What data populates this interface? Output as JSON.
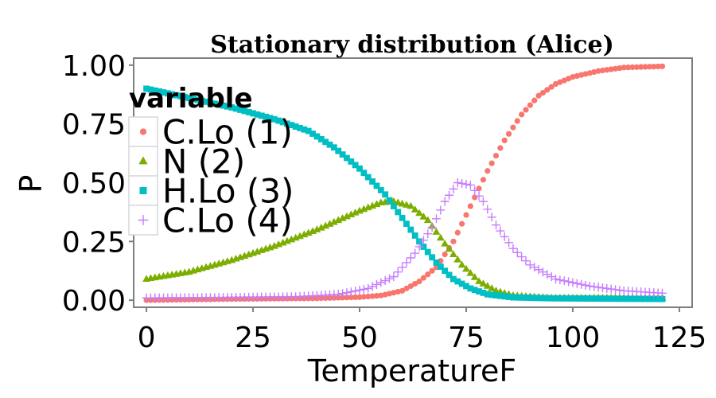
{
  "chart_data": {
    "type": "scatter",
    "title": "Stationary distribution (Alice)",
    "xlabel": "TemperatureF",
    "ylabel": "P",
    "xlim": [
      -3,
      128
    ],
    "ylim": [
      -0.03,
      1.03
    ],
    "xticks": [
      "0",
      "25",
      "50",
      "75",
      "100",
      "125"
    ],
    "yticks": [
      "0.00",
      "0.25",
      "0.50",
      "0.75",
      "1.00"
    ],
    "grid": false,
    "legend": {
      "title": "variable",
      "placement": "top-left (inside)"
    },
    "x": {
      "start": 0,
      "end": 121,
      "step": 1
    },
    "series": [
      {
        "name": "C.Lo (1)",
        "color": "#F8766D",
        "marker": "circle",
        "points": [
          [
            0,
            0.0
          ],
          [
            20,
            0.005
          ],
          [
            40,
            0.008
          ],
          [
            50,
            0.013
          ],
          [
            55,
            0.02
          ],
          [
            60,
            0.04
          ],
          [
            64,
            0.08
          ],
          [
            68,
            0.14
          ],
          [
            72,
            0.25
          ],
          [
            76,
            0.4
          ],
          [
            80,
            0.55
          ],
          [
            84,
            0.68
          ],
          [
            88,
            0.79
          ],
          [
            92,
            0.87
          ],
          [
            96,
            0.92
          ],
          [
            100,
            0.95
          ],
          [
            106,
            0.975
          ],
          [
            112,
            0.99
          ],
          [
            121,
            0.995
          ]
        ]
      },
      {
        "name": "N (2)",
        "color": "#7CAE00",
        "marker": "triangle",
        "points": [
          [
            0,
            0.09
          ],
          [
            10,
            0.12
          ],
          [
            20,
            0.17
          ],
          [
            30,
            0.23
          ],
          [
            40,
            0.3
          ],
          [
            50,
            0.38
          ],
          [
            55,
            0.415
          ],
          [
            58,
            0.42
          ],
          [
            62,
            0.4
          ],
          [
            66,
            0.34
          ],
          [
            70,
            0.24
          ],
          [
            74,
            0.15
          ],
          [
            78,
            0.08
          ],
          [
            82,
            0.04
          ],
          [
            86,
            0.02
          ],
          [
            95,
            0.01
          ],
          [
            121,
            0.01
          ]
        ]
      },
      {
        "name": "H.Lo (3)",
        "color": "#00BFC4",
        "marker": "square",
        "points": [
          [
            0,
            0.9
          ],
          [
            10,
            0.86
          ],
          [
            20,
            0.82
          ],
          [
            30,
            0.77
          ],
          [
            38,
            0.72
          ],
          [
            44,
            0.65
          ],
          [
            50,
            0.56
          ],
          [
            56,
            0.45
          ],
          [
            60,
            0.35
          ],
          [
            64,
            0.25
          ],
          [
            68,
            0.16
          ],
          [
            72,
            0.09
          ],
          [
            76,
            0.05
          ],
          [
            80,
            0.025
          ],
          [
            86,
            0.012
          ],
          [
            95,
            0.008
          ],
          [
            121,
            0.005
          ]
        ]
      },
      {
        "name": "C.Lo (4)",
        "color": "#C77CFF",
        "marker": "cross",
        "points": [
          [
            0,
            0.01
          ],
          [
            20,
            0.012
          ],
          [
            35,
            0.015
          ],
          [
            45,
            0.025
          ],
          [
            52,
            0.05
          ],
          [
            58,
            0.1
          ],
          [
            63,
            0.2
          ],
          [
            67,
            0.31
          ],
          [
            70,
            0.42
          ],
          [
            73,
            0.5
          ],
          [
            76,
            0.49
          ],
          [
            79,
            0.42
          ],
          [
            82,
            0.32
          ],
          [
            86,
            0.22
          ],
          [
            90,
            0.15
          ],
          [
            96,
            0.09
          ],
          [
            104,
            0.06
          ],
          [
            112,
            0.04
          ],
          [
            121,
            0.03
          ]
        ]
      }
    ]
  }
}
